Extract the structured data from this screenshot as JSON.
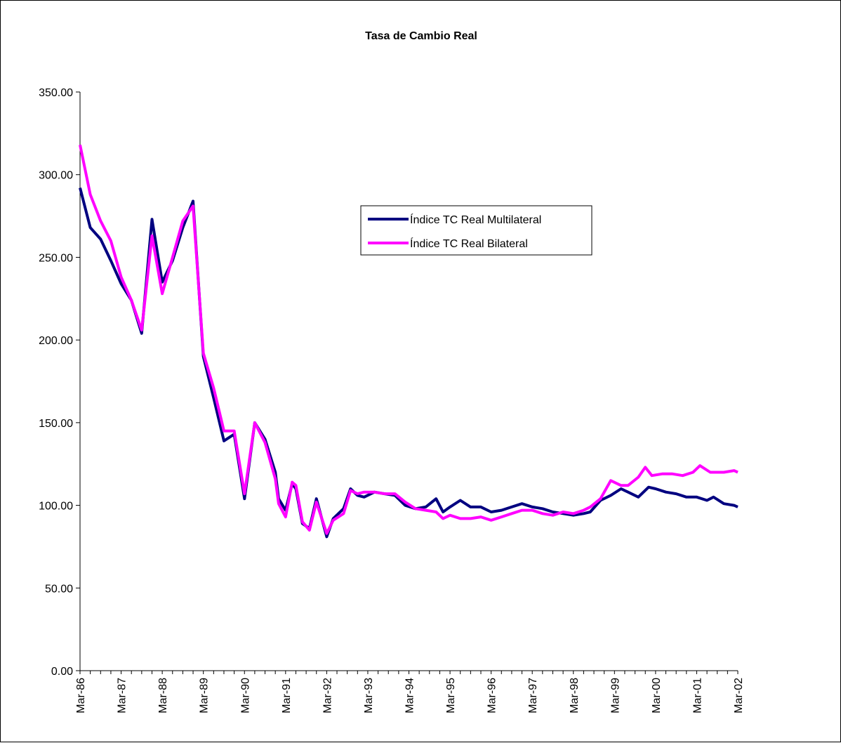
{
  "chart_data": {
    "type": "line",
    "title": "Tasa de Cambio Real",
    "xlabel": "",
    "ylabel": "",
    "ylim": [
      0,
      350
    ],
    "y_ticks": [
      "0.00",
      "50.00",
      "100.00",
      "150.00",
      "200.00",
      "250.00",
      "300.00",
      "350.00"
    ],
    "x_tick_labels": [
      "Mar-86",
      "Mar-87",
      "Mar-88",
      "Mar-89",
      "Mar-90",
      "Mar-91",
      "Mar-92",
      "Mar-93",
      "Mar-94",
      "Mar-95",
      "Mar-96",
      "Mar-97",
      "Mar-98",
      "Mar-99",
      "Mar-00",
      "Mar-01",
      "Mar-02"
    ],
    "grid": false,
    "legend_position": "upper-center",
    "series": [
      {
        "name": "Índice TC Real Multilateral",
        "color": "#000080",
        "points": [
          [
            1986.17,
            292
          ],
          [
            1986.42,
            268
          ],
          [
            1986.67,
            261
          ],
          [
            1986.92,
            248
          ],
          [
            1987.17,
            234
          ],
          [
            1987.42,
            224
          ],
          [
            1987.67,
            204
          ],
          [
            1987.92,
            273
          ],
          [
            1988.17,
            235
          ],
          [
            1988.42,
            248
          ],
          [
            1988.67,
            268
          ],
          [
            1988.92,
            284
          ],
          [
            1989.17,
            190
          ],
          [
            1989.42,
            165
          ],
          [
            1989.67,
            139
          ],
          [
            1989.92,
            143
          ],
          [
            1990.17,
            104
          ],
          [
            1990.42,
            150
          ],
          [
            1990.67,
            140
          ],
          [
            1990.92,
            120
          ],
          [
            1991.0,
            104
          ],
          [
            1991.17,
            97
          ],
          [
            1991.33,
            113
          ],
          [
            1991.42,
            110
          ],
          [
            1991.58,
            89
          ],
          [
            1991.75,
            86
          ],
          [
            1991.92,
            104
          ],
          [
            1992.17,
            81
          ],
          [
            1992.33,
            92
          ],
          [
            1992.58,
            98
          ],
          [
            1992.75,
            110
          ],
          [
            1992.92,
            106
          ],
          [
            1993.08,
            105
          ],
          [
            1993.33,
            108
          ],
          [
            1993.58,
            107
          ],
          [
            1993.83,
            106
          ],
          [
            1994.08,
            100
          ],
          [
            1994.33,
            98
          ],
          [
            1994.58,
            99
          ],
          [
            1994.83,
            104
          ],
          [
            1995.0,
            96
          ],
          [
            1995.17,
            99
          ],
          [
            1995.42,
            103
          ],
          [
            1995.67,
            99
          ],
          [
            1995.92,
            99
          ],
          [
            1996.17,
            96
          ],
          [
            1996.42,
            97
          ],
          [
            1996.67,
            99
          ],
          [
            1996.92,
            101
          ],
          [
            1997.17,
            99
          ],
          [
            1997.42,
            98
          ],
          [
            1997.67,
            96
          ],
          [
            1997.92,
            95
          ],
          [
            1998.17,
            94
          ],
          [
            1998.42,
            95
          ],
          [
            1998.58,
            96
          ],
          [
            1998.83,
            103
          ],
          [
            1999.08,
            106
          ],
          [
            1999.33,
            110
          ],
          [
            1999.5,
            108
          ],
          [
            1999.75,
            105
          ],
          [
            2000.0,
            111
          ],
          [
            2000.17,
            110
          ],
          [
            2000.42,
            108
          ],
          [
            2000.67,
            107
          ],
          [
            2000.92,
            105
          ],
          [
            2001.17,
            105
          ],
          [
            2001.42,
            103
          ],
          [
            2001.58,
            105
          ],
          [
            2001.83,
            101
          ],
          [
            2002.08,
            100
          ],
          [
            2002.17,
            99
          ]
        ]
      },
      {
        "name": "Índice TC Real Bilateral",
        "color": "#ff00ff",
        "points": [
          [
            1986.17,
            318
          ],
          [
            1986.42,
            288
          ],
          [
            1986.67,
            272
          ],
          [
            1986.92,
            260
          ],
          [
            1987.17,
            238
          ],
          [
            1987.42,
            224
          ],
          [
            1987.67,
            206
          ],
          [
            1987.92,
            263
          ],
          [
            1988.17,
            228
          ],
          [
            1988.42,
            250
          ],
          [
            1988.67,
            272
          ],
          [
            1988.92,
            281
          ],
          [
            1989.17,
            192
          ],
          [
            1989.42,
            171
          ],
          [
            1989.67,
            145
          ],
          [
            1989.92,
            145
          ],
          [
            1990.17,
            107
          ],
          [
            1990.42,
            150
          ],
          [
            1990.67,
            138
          ],
          [
            1990.92,
            116
          ],
          [
            1991.0,
            101
          ],
          [
            1991.17,
            93
          ],
          [
            1991.33,
            114
          ],
          [
            1991.42,
            112
          ],
          [
            1991.58,
            90
          ],
          [
            1991.75,
            85
          ],
          [
            1991.92,
            102
          ],
          [
            1992.17,
            83
          ],
          [
            1992.33,
            91
          ],
          [
            1992.58,
            95
          ],
          [
            1992.75,
            109
          ],
          [
            1992.92,
            107
          ],
          [
            1993.08,
            108
          ],
          [
            1993.33,
            108
          ],
          [
            1993.58,
            107
          ],
          [
            1993.83,
            107
          ],
          [
            1994.08,
            102
          ],
          [
            1994.33,
            98
          ],
          [
            1994.58,
            97
          ],
          [
            1994.83,
            96
          ],
          [
            1995.0,
            92
          ],
          [
            1995.17,
            94
          ],
          [
            1995.42,
            92
          ],
          [
            1995.67,
            92
          ],
          [
            1995.92,
            93
          ],
          [
            1996.17,
            91
          ],
          [
            1996.42,
            93
          ],
          [
            1996.67,
            95
          ],
          [
            1996.92,
            97
          ],
          [
            1997.17,
            97
          ],
          [
            1997.42,
            95
          ],
          [
            1997.67,
            94
          ],
          [
            1997.92,
            96
          ],
          [
            1998.17,
            95
          ],
          [
            1998.42,
            97
          ],
          [
            1998.58,
            99
          ],
          [
            1998.83,
            104
          ],
          [
            1999.08,
            115
          ],
          [
            1999.33,
            112
          ],
          [
            1999.5,
            112
          ],
          [
            1999.75,
            117
          ],
          [
            1999.92,
            123
          ],
          [
            2000.08,
            118
          ],
          [
            2000.33,
            119
          ],
          [
            2000.58,
            119
          ],
          [
            2000.83,
            118
          ],
          [
            2001.08,
            120
          ],
          [
            2001.25,
            124
          ],
          [
            2001.5,
            120
          ],
          [
            2001.83,
            120
          ],
          [
            2002.08,
            121
          ],
          [
            2002.17,
            120
          ]
        ]
      }
    ]
  }
}
